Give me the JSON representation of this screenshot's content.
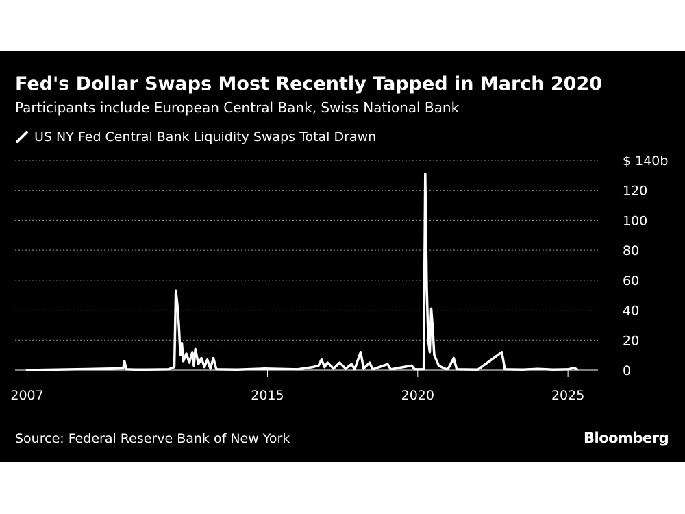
{
  "chart_data": {
    "type": "line",
    "title": "Fed's Dollar Swaps Most Recently Tapped in March 2020",
    "subtitle": "Participants include European Central Bank, Swiss National Bank",
    "legend": {
      "position": "top-left",
      "entries": [
        "US NY Fed Central Bank Liquidity Swaps Total Drawn"
      ]
    },
    "series": [
      {
        "name": "US NY Fed Central Bank Liquidity Swaps Total Drawn",
        "color": "#ffffff",
        "points": [
          [
            2007.0,
            0
          ],
          [
            2008.5,
            0.5
          ],
          [
            2010.2,
            1.2
          ],
          [
            2010.24,
            6
          ],
          [
            2010.3,
            0.5
          ],
          [
            2010.6,
            0.3
          ],
          [
            2011.0,
            0.3
          ],
          [
            2011.7,
            0.5
          ],
          [
            2011.9,
            2
          ],
          [
            2011.95,
            53
          ],
          [
            2012.0,
            44
          ],
          [
            2012.05,
            30
          ],
          [
            2012.1,
            10
          ],
          [
            2012.15,
            18
          ],
          [
            2012.2,
            6
          ],
          [
            2012.3,
            11
          ],
          [
            2012.4,
            5
          ],
          [
            2012.5,
            12
          ],
          [
            2012.55,
            3
          ],
          [
            2012.6,
            14
          ],
          [
            2012.7,
            4
          ],
          [
            2012.8,
            8
          ],
          [
            2012.9,
            2
          ],
          [
            2013.0,
            7
          ],
          [
            2013.1,
            1
          ],
          [
            2013.2,
            8
          ],
          [
            2013.3,
            0.5
          ],
          [
            2014.0,
            0.3
          ],
          [
            2014.9,
            1
          ],
          [
            2016.0,
            0.5
          ],
          [
            2016.5,
            2
          ],
          [
            2016.7,
            3
          ],
          [
            2016.8,
            7
          ],
          [
            2016.9,
            2
          ],
          [
            2017.0,
            5
          ],
          [
            2017.2,
            1
          ],
          [
            2017.4,
            5
          ],
          [
            2017.6,
            1
          ],
          [
            2017.8,
            4
          ],
          [
            2017.9,
            0.5
          ],
          [
            2018.1,
            12
          ],
          [
            2018.2,
            1
          ],
          [
            2018.4,
            5
          ],
          [
            2018.5,
            0.5
          ],
          [
            2019.0,
            4
          ],
          [
            2019.1,
            0.5
          ],
          [
            2019.8,
            3
          ],
          [
            2019.9,
            0.5
          ],
          [
            2020.2,
            0.5
          ],
          [
            2020.25,
            131
          ],
          [
            2020.3,
            55
          ],
          [
            2020.35,
            20
          ],
          [
            2020.4,
            12
          ],
          [
            2020.45,
            41
          ],
          [
            2020.5,
            28
          ],
          [
            2020.55,
            10
          ],
          [
            2020.7,
            3
          ],
          [
            2020.9,
            1
          ],
          [
            2021.0,
            0.5
          ],
          [
            2021.2,
            8
          ],
          [
            2021.3,
            0.5
          ],
          [
            2022.0,
            0.3
          ],
          [
            2022.8,
            12
          ],
          [
            2022.9,
            0.5
          ],
          [
            2023.5,
            0.3
          ],
          [
            2024.0,
            0.8
          ],
          [
            2024.5,
            0.3
          ],
          [
            2025.0,
            0.5
          ],
          [
            2025.2,
            1.5
          ],
          [
            2025.3,
            0.5
          ]
        ]
      }
    ],
    "x_ticks": [
      2007,
      2015,
      2020,
      2025
    ],
    "xlim": [
      2006.6,
      2026.0
    ],
    "y_ticks": [
      0,
      20,
      40,
      60,
      80,
      100,
      120,
      140
    ],
    "y_tick_labels": [
      "0",
      "20",
      "40",
      "60",
      "80",
      "100",
      "120",
      "$ 140b"
    ],
    "ylim": [
      0,
      140
    ],
    "grid": true,
    "source": "Source: Federal Reserve Bank of New York",
    "brand": "Bloomberg"
  }
}
